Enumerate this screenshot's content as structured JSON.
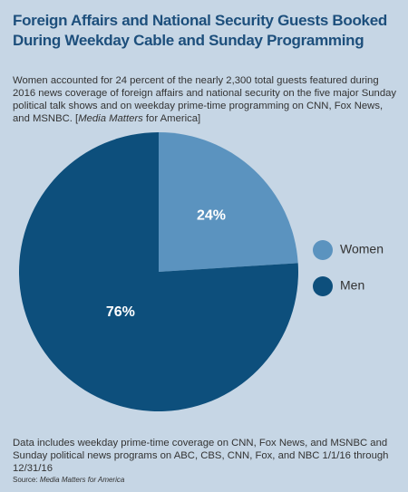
{
  "chart_data": {
    "type": "pie",
    "title": "Foreign Affairs and National Security Guests Booked During Weekday Cable and Sunday Programming",
    "subtitle": [
      "Women accounted for 24 percent of the nearly 2,300 total guests featured during 2016 news coverage of foreign affairs and national security on the five major Sunday political talk shows and on weekday prime-time programming on CNN, Fox News, and MSNBC. [",
      "Media Matters",
      " for America]"
    ],
    "categories": [
      "Women",
      "Men"
    ],
    "values": [
      24,
      76
    ],
    "value_labels": [
      "24%",
      "76%"
    ],
    "colors": [
      "#5b93bf",
      "#0d4f7c"
    ],
    "notes": "Data includes weekday prime-time coverage on CNN, Fox News, and MSNBC and Sunday political news programs on ABC, CBS, CNN, Fox, and NBC 1/1/16 through 12/31/16",
    "source_label": "Source:",
    "source": "Media Matters for America",
    "legend": "right"
  }
}
